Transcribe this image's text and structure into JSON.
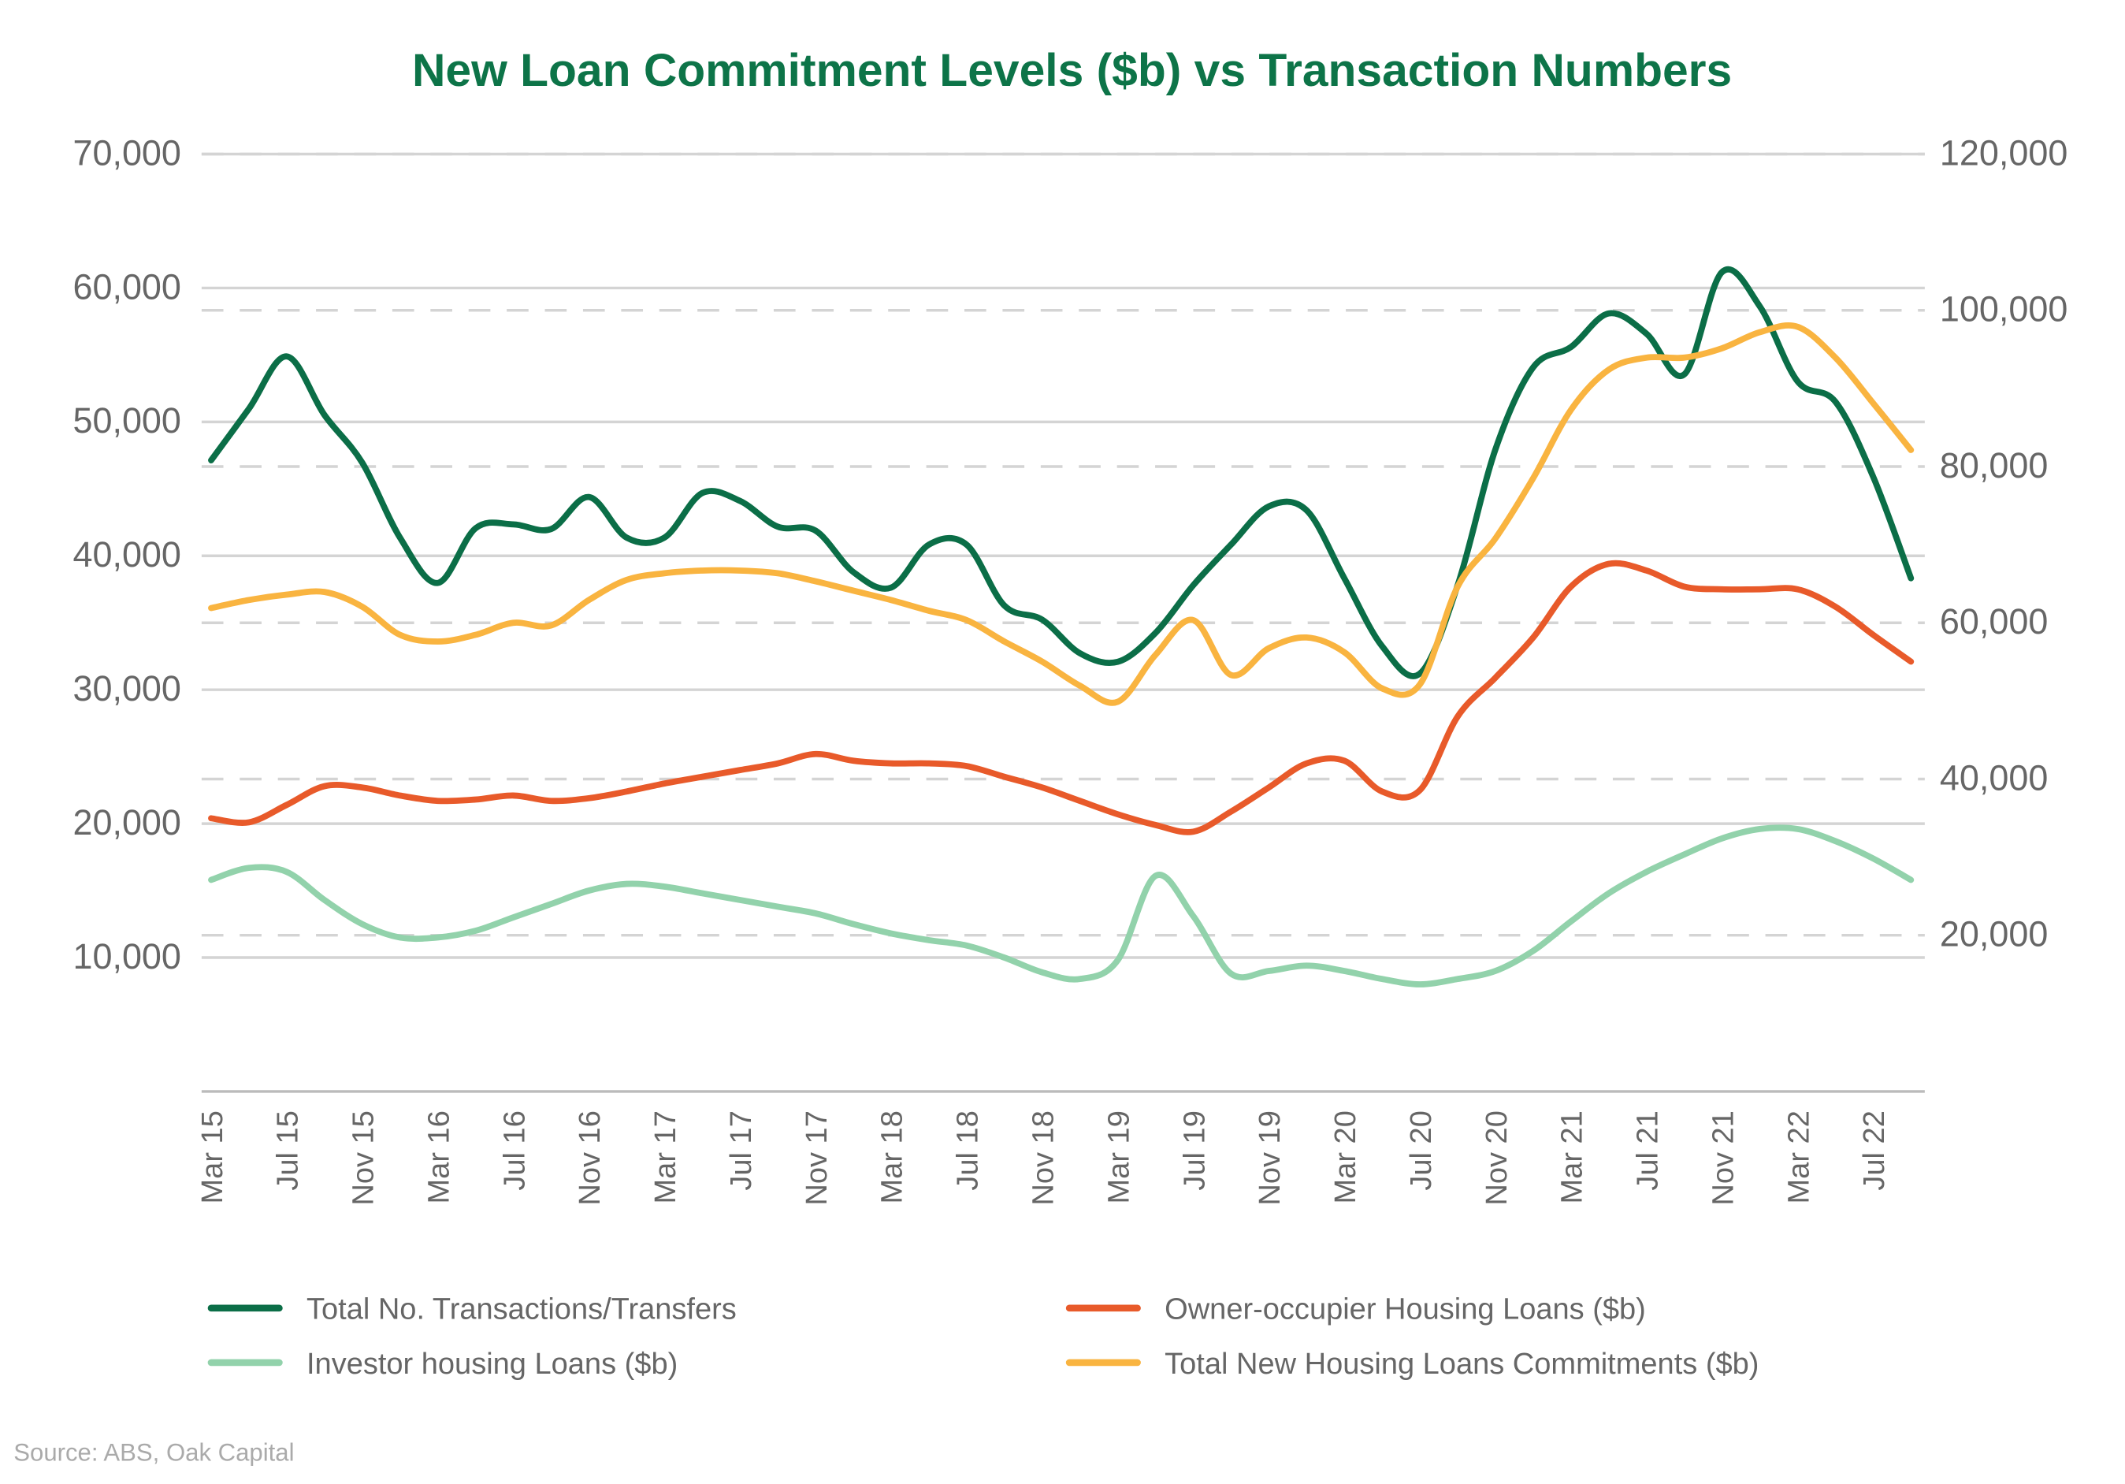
{
  "chart_data": {
    "type": "line",
    "title": "New Loan Commitment Levels ($b) vs Transaction Numbers",
    "source": "Source: ABS, Oak Capital",
    "categories": [
      "Mar 15",
      null,
      "Jul 15",
      null,
      "Nov 15",
      null,
      "Mar 16",
      null,
      "Jul 16",
      null,
      "Nov 16",
      null,
      "Mar 17",
      null,
      "Jul 17",
      null,
      "Nov 17",
      null,
      "Mar 18",
      null,
      "Jul 18",
      null,
      "Nov 18",
      null,
      "Mar 19",
      null,
      "Jul 19",
      null,
      "Nov 19",
      null,
      "Mar 20",
      null,
      "Jul 20",
      null,
      "Nov 20",
      null,
      "Mar 21",
      null,
      "Jul 21",
      null,
      "Nov 21",
      null,
      "Mar 22",
      null,
      "Jul 22",
      null
    ],
    "ylim": [
      0,
      70000
    ],
    "yticks": [
      {
        "value": 10000,
        "label": "10,000"
      },
      {
        "value": 20000,
        "label": "20,000"
      },
      {
        "value": 30000,
        "label": "30,000"
      },
      {
        "value": 40000,
        "label": "40,000"
      },
      {
        "value": 50000,
        "label": "50,000"
      },
      {
        "value": 60000,
        "label": "60,000"
      },
      {
        "value": 70000,
        "label": "70,000"
      }
    ],
    "y2lim": [
      0,
      120000
    ],
    "y2ticks": [
      {
        "value": 20000,
        "label": "20,000"
      },
      {
        "value": 40000,
        "label": "40,000"
      },
      {
        "value": 60000,
        "label": "60,000"
      },
      {
        "value": 80000,
        "label": "80,000"
      },
      {
        "value": 100000,
        "label": "100,000"
      },
      {
        "value": 120000,
        "label": "120,000"
      }
    ],
    "grid": true,
    "series": [
      {
        "name": "Total No. Transactions/Transfers",
        "color": "#0b6e47",
        "axis": "y2",
        "values": [
          80800,
          87400,
          94100,
          86600,
          80500,
          70900,
          65100,
          72100,
          72600,
          72000,
          76100,
          70900,
          70900,
          76600,
          75600,
          72300,
          71800,
          66500,
          64500,
          70000,
          70000,
          62200,
          60400,
          56100,
          55000,
          58700,
          64800,
          70000,
          74900,
          74400,
          65700,
          57000,
          53500,
          64800,
          82200,
          92700,
          95300,
          99600,
          97000,
          91800,
          104900,
          100500,
          90900,
          88300,
          78700,
          65700
        ]
      },
      {
        "name": "Owner-occupier Housing Loans ($b)",
        "color": "#e85a2a",
        "values": [
          20400,
          20100,
          21400,
          22800,
          22700,
          22100,
          21700,
          21800,
          22100,
          21700,
          21900,
          22400,
          23000,
          23500,
          24000,
          24500,
          25200,
          24700,
          24500,
          24500,
          24300,
          23500,
          22700,
          21700,
          20700,
          19900,
          19400,
          20900,
          22700,
          24500,
          24700,
          22400,
          22500,
          28000,
          30900,
          33900,
          37700,
          39400,
          38900,
          37700,
          37500,
          37500,
          37500,
          36200,
          34100,
          32100
        ]
      },
      {
        "name": "Investor housing Loans ($b)",
        "color": "#92d2ab",
        "values": [
          15800,
          16700,
          16400,
          14300,
          12500,
          11500,
          11500,
          12000,
          13000,
          14000,
          15000,
          15500,
          15300,
          14800,
          14300,
          13800,
          13300,
          12500,
          11800,
          11300,
          10900,
          10000,
          8900,
          8400,
          9800,
          16100,
          13100,
          8800,
          9000,
          9400,
          9000,
          8400,
          8000,
          8400,
          9000,
          10500,
          12700,
          14800,
          16400,
          17700,
          18900,
          19600,
          19600,
          18700,
          17400,
          15800
        ]
      },
      {
        "name": "Total New Housing Loans Commitments ($b)",
        "color": "#f9b440",
        "values": [
          36100,
          36700,
          37100,
          37300,
          36200,
          34100,
          33600,
          34100,
          35000,
          34800,
          36700,
          38200,
          38700,
          38900,
          38900,
          38700,
          38100,
          37400,
          36700,
          35900,
          35200,
          33600,
          32100,
          30300,
          29100,
          32600,
          35200,
          31100,
          33100,
          33900,
          32800,
          30100,
          30400,
          37700,
          41300,
          45800,
          50900,
          53900,
          54800,
          54800,
          55500,
          56700,
          57100,
          54800,
          51400,
          47900
        ]
      }
    ]
  }
}
